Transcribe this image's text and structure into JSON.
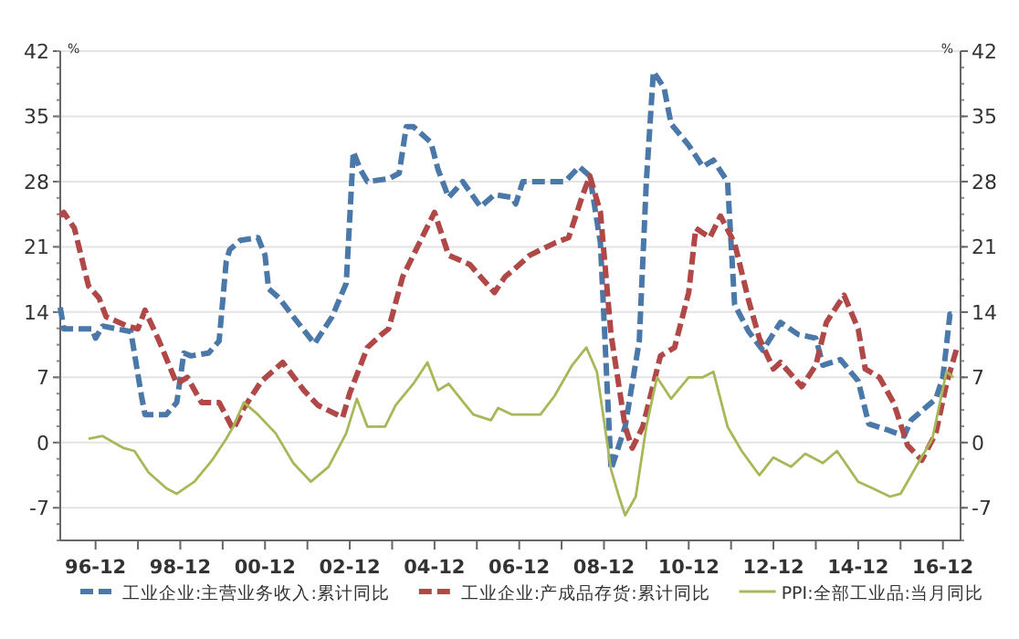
{
  "chart_data": {
    "type": "line",
    "ylabel": "%",
    "y2label": "%",
    "xlim": [
      "1996-02",
      "2017-05"
    ],
    "ylim": [
      -10.5,
      42
    ],
    "yticks": [
      -7,
      0,
      7,
      14,
      21,
      28,
      35,
      42
    ],
    "y2lim": [
      -10.5,
      42
    ],
    "y2ticks": [
      -7,
      0,
      7,
      14,
      21,
      28,
      35,
      42
    ],
    "xticks": [
      {
        "value": "1996-12",
        "label": "96-12"
      },
      {
        "value": "1997-12",
        "label": null
      },
      {
        "value": "1998-12",
        "label": "98-12"
      },
      {
        "value": "1999-12",
        "label": null
      },
      {
        "value": "2000-12",
        "label": "00-12"
      },
      {
        "value": "2001-12",
        "label": null
      },
      {
        "value": "2002-12",
        "label": "02-12"
      },
      {
        "value": "2003-12",
        "label": null
      },
      {
        "value": "2004-12",
        "label": "04-12"
      },
      {
        "value": "2005-12",
        "label": null
      },
      {
        "value": "2006-12",
        "label": "06-12"
      },
      {
        "value": "2007-12",
        "label": null
      },
      {
        "value": "2008-12",
        "label": "08-12"
      },
      {
        "value": "2009-12",
        "label": null
      },
      {
        "value": "2010-12",
        "label": "10-12"
      },
      {
        "value": "2011-12",
        "label": null
      },
      {
        "value": "2012-12",
        "label": "12-12"
      },
      {
        "value": "2013-12",
        "label": null
      },
      {
        "value": "2014-12",
        "label": "14-12"
      },
      {
        "value": "2015-12",
        "label": null
      },
      {
        "value": "2016-12",
        "label": "16-12"
      }
    ],
    "grid": "y",
    "legend": "bottom",
    "series": [
      {
        "name": "工业企业:主营业务收入:累计同比",
        "color": "#4a78a8",
        "line_style": "dashed",
        "x": [
          "1996-02",
          "1996-03",
          "1996-11",
          "1996-12",
          "1997-02",
          "1997-10",
          "1998-01",
          "1998-02",
          "1998-08",
          "1998-11",
          "1999-01",
          "1999-03",
          "1999-08",
          "1999-11",
          "2000-01",
          "2000-02",
          "2000-05",
          "2000-10",
          "2000-12",
          "2001-01",
          "2001-04",
          "2001-08",
          "2002-02",
          "2002-07",
          "2002-11",
          "2003-01",
          "2003-03",
          "2003-05",
          "2003-11",
          "2004-02",
          "2004-04",
          "2004-06",
          "2004-11",
          "2005-01",
          "2005-04",
          "2005-08",
          "2006-01",
          "2006-05",
          "2006-10",
          "2006-11",
          "2007-01",
          "2008-01",
          "2008-05",
          "2008-08",
          "2008-11",
          "2009-02",
          "2009-06",
          "2009-10",
          "2009-12",
          "2010-02",
          "2010-05",
          "2010-07",
          "2010-12",
          "2011-04",
          "2011-07",
          "2011-11",
          "2012-01",
          "2012-05",
          "2012-09",
          "2013-02",
          "2013-07",
          "2013-12",
          "2014-02",
          "2014-07",
          "2014-12",
          "2015-03",
          "2015-08",
          "2016-01",
          "2016-03",
          "2016-10",
          "2016-12",
          "2017-02",
          "2017-03"
        ],
        "values": [
          14.5,
          12.2,
          12.2,
          11.2,
          12.5,
          11.9,
          5.0,
          3.0,
          3.0,
          4.3,
          9.6,
          9.3,
          9.6,
          10.9,
          19.4,
          20.7,
          21.7,
          22.0,
          20.1,
          16.5,
          15.5,
          13.5,
          10.6,
          13.5,
          17.1,
          31.2,
          29.3,
          28.0,
          28.3,
          28.9,
          33.9,
          33.9,
          32.2,
          29.3,
          26.3,
          28.0,
          25.3,
          26.6,
          26.3,
          25.6,
          28.0,
          28.0,
          29.6,
          28.6,
          21.4,
          -2.9,
          1.7,
          10.9,
          28.0,
          39.8,
          38.1,
          34.2,
          31.9,
          29.6,
          30.3,
          28.0,
          14.8,
          11.9,
          9.9,
          12.9,
          11.6,
          11.2,
          8.3,
          8.9,
          6.6,
          2.0,
          1.4,
          0.7,
          2.4,
          4.7,
          7.0,
          13.8,
          13.8
        ]
      },
      {
        "name": "工业企业:产成品存货:累计同比",
        "color": "#b04848",
        "line_style": "dashed",
        "x": [
          "1996-02",
          "1996-03",
          "1996-06",
          "1996-10",
          "1997-01",
          "1997-03",
          "1997-09",
          "1997-12",
          "1998-02",
          "1998-06",
          "1998-11",
          "1999-02",
          "1999-06",
          "1999-11",
          "2000-03",
          "2000-06",
          "2000-11",
          "2001-05",
          "2001-11",
          "2002-03",
          "2002-10",
          "2002-12",
          "2003-05",
          "2003-09",
          "2003-11",
          "2004-03",
          "2004-06",
          "2004-12",
          "2005-04",
          "2005-10",
          "2006-05",
          "2006-08",
          "2006-10",
          "2007-03",
          "2007-10",
          "2008-02",
          "2008-06",
          "2008-08",
          "2008-11",
          "2009-02",
          "2009-06",
          "2009-08",
          "2009-11",
          "2010-04",
          "2010-08",
          "2010-12",
          "2011-02",
          "2011-06",
          "2011-09",
          "2012-01",
          "2012-05",
          "2012-08",
          "2012-12",
          "2013-02",
          "2013-08",
          "2013-12",
          "2014-03",
          "2014-08",
          "2014-12",
          "2015-02",
          "2015-06",
          "2015-10",
          "2016-02",
          "2016-06",
          "2016-10",
          "2017-01",
          "2017-04"
        ],
        "values": [
          24.3,
          24.7,
          23.0,
          16.8,
          15.5,
          13.5,
          12.5,
          12.2,
          14.2,
          10.9,
          6.3,
          7.0,
          4.3,
          4.3,
          1.4,
          3.7,
          6.6,
          8.6,
          5.6,
          4.0,
          2.7,
          5.3,
          10.2,
          11.6,
          12.2,
          17.8,
          20.1,
          24.7,
          20.1,
          19.1,
          16.1,
          17.8,
          18.4,
          20.1,
          21.4,
          22.0,
          26.6,
          28.6,
          24.7,
          11.6,
          1.7,
          -0.6,
          1.7,
          9.3,
          10.2,
          16.1,
          23.0,
          22.0,
          24.3,
          21.4,
          15.2,
          11.2,
          7.9,
          8.6,
          6.0,
          8.3,
          12.9,
          15.8,
          12.2,
          7.9,
          7.0,
          4.3,
          -0.3,
          -1.9,
          1.0,
          6.3,
          10.2
        ]
      },
      {
        "name": "PPI:全部工业品:当月同比",
        "color": "#a8b858",
        "line_style": "solid",
        "x": [
          "1996-10",
          "1997-02",
          "1997-08",
          "1997-11",
          "1998-03",
          "1998-08",
          "1998-11",
          "1999-04",
          "1999-09",
          "2000-01",
          "2000-03",
          "2000-06",
          "2000-10",
          "2001-03",
          "2001-08",
          "2002-01",
          "2002-06",
          "2002-11",
          "2003-02",
          "2003-05",
          "2003-10",
          "2004-01",
          "2004-06",
          "2004-10",
          "2005-01",
          "2005-04",
          "2005-11",
          "2006-04",
          "2006-06",
          "2006-10",
          "2007-06",
          "2007-10",
          "2008-03",
          "2008-07",
          "2008-10",
          "2009-02",
          "2009-04",
          "2009-06",
          "2009-09",
          "2009-12",
          "2010-03",
          "2010-07",
          "2010-12",
          "2011-04",
          "2011-07",
          "2011-11",
          "2012-03",
          "2012-08",
          "2012-12",
          "2013-05",
          "2013-09",
          "2014-02",
          "2014-06",
          "2014-12",
          "2015-04",
          "2015-09",
          "2015-12",
          "2016-05",
          "2016-09",
          "2017-01",
          "2017-03"
        ],
        "values": [
          0.4,
          0.7,
          -0.6,
          -0.9,
          -3.2,
          -4.9,
          -5.5,
          -4.2,
          -1.9,
          0.4,
          1.7,
          4.3,
          3.0,
          1.0,
          -2.2,
          -4.2,
          -2.6,
          1.0,
          4.7,
          1.7,
          1.7,
          4.0,
          6.3,
          8.6,
          5.6,
          6.3,
          3.0,
          2.4,
          3.7,
          3.0,
          3.0,
          5.0,
          8.3,
          10.2,
          7.6,
          -2.9,
          -5.5,
          -7.8,
          -5.8,
          1.7,
          7.0,
          4.7,
          7.0,
          7.0,
          7.6,
          1.7,
          -0.9,
          -3.5,
          -1.6,
          -2.6,
          -1.2,
          -2.2,
          -0.9,
          -4.2,
          -4.9,
          -5.8,
          -5.5,
          -2.2,
          0.4,
          7.6,
          7.0
        ]
      }
    ]
  }
}
